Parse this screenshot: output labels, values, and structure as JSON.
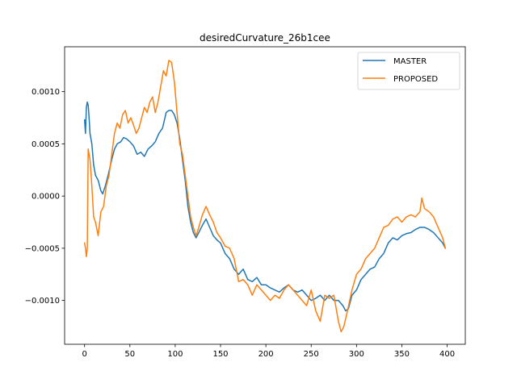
{
  "chart_data": {
    "type": "line",
    "title": "desiredCurvature_26b1cee",
    "xlabel": "",
    "ylabel": "",
    "xlim": [
      -22,
      420
    ],
    "ylim": [
      -0.00142,
      0.00143
    ],
    "x_ticks": [
      0,
      50,
      100,
      150,
      200,
      250,
      300,
      350,
      400
    ],
    "y_ticks": [
      -0.001,
      -0.0005,
      0.0,
      0.0005,
      0.001
    ],
    "y_tick_labels": [
      "−0.0010",
      "−0.0005",
      "0.0000",
      "0.0005",
      "0.0010"
    ],
    "grid": false,
    "legend": "top-right",
    "series": [
      {
        "name": "MASTER",
        "color": "#1f77b4",
        "x": [
          0,
          1,
          2,
          3,
          4,
          5,
          6,
          8,
          10,
          12,
          15,
          18,
          20,
          23,
          26,
          30,
          33,
          36,
          40,
          43,
          46,
          50,
          54,
          58,
          62,
          66,
          70,
          74,
          78,
          82,
          86,
          90,
          93,
          96,
          99,
          102,
          105,
          108,
          111,
          114,
          117,
          120,
          123,
          126,
          130,
          134,
          138,
          142,
          146,
          150,
          155,
          160,
          165,
          170,
          175,
          180,
          185,
          190,
          195,
          200,
          205,
          210,
          215,
          220,
          225,
          230,
          235,
          240,
          245,
          250,
          255,
          260,
          265,
          270,
          275,
          280,
          285,
          288,
          291,
          295,
          300,
          305,
          310,
          315,
          320,
          325,
          330,
          335,
          340,
          345,
          350,
          355,
          360,
          365,
          370,
          375,
          380,
          385,
          390,
          395,
          398
        ],
        "y": [
          0.00073,
          0.0006,
          0.00085,
          0.0009,
          0.00087,
          0.00075,
          0.0006,
          0.0005,
          0.0003,
          0.0002,
          0.00015,
          5e-05,
          2e-05,
          0.0001,
          0.0002,
          0.00035,
          0.00045,
          0.0005,
          0.00052,
          0.00056,
          0.00055,
          0.00052,
          0.00048,
          0.0004,
          0.00042,
          0.00038,
          0.00045,
          0.00048,
          0.00052,
          0.0006,
          0.00065,
          0.0008,
          0.00082,
          0.00082,
          0.00078,
          0.0007,
          0.00055,
          0.00035,
          0.00015,
          -0.0001,
          -0.00025,
          -0.00035,
          -0.0004,
          -0.00035,
          -0.00028,
          -0.00022,
          -0.0003,
          -0.00038,
          -0.00042,
          -0.00045,
          -0.00055,
          -0.0006,
          -0.0007,
          -0.00075,
          -0.0007,
          -0.0008,
          -0.00082,
          -0.00078,
          -0.00085,
          -0.00085,
          -0.00088,
          -0.0009,
          -0.00092,
          -0.00088,
          -0.00085,
          -0.0009,
          -0.00092,
          -0.0009,
          -0.00095,
          -0.001,
          -0.00098,
          -0.00095,
          -0.001,
          -0.00095,
          -0.001,
          -0.001,
          -0.00105,
          -0.0011,
          -0.00108,
          -0.00095,
          -0.0009,
          -0.0008,
          -0.00075,
          -0.0007,
          -0.00068,
          -0.0006,
          -0.00055,
          -0.00045,
          -0.0004,
          -0.00042,
          -0.00038,
          -0.00036,
          -0.00035,
          -0.00032,
          -0.0003,
          -0.0003,
          -0.00032,
          -0.00035,
          -0.0004,
          -0.00045,
          -0.0005
        ]
      },
      {
        "name": "PROPOSED",
        "color": "#ff7f0e",
        "x": [
          0,
          1,
          2,
          3,
          4,
          5,
          6,
          8,
          10,
          12,
          15,
          18,
          21,
          24,
          27,
          30,
          33,
          36,
          39,
          42,
          45,
          48,
          51,
          54,
          57,
          60,
          63,
          66,
          69,
          72,
          75,
          78,
          81,
          84,
          87,
          90,
          93,
          96,
          99,
          101,
          103,
          105,
          108,
          111,
          114,
          117,
          120,
          123,
          126,
          130,
          134,
          138,
          142,
          146,
          150,
          155,
          160,
          165,
          170,
          175,
          180,
          185,
          190,
          195,
          200,
          205,
          210,
          215,
          220,
          225,
          230,
          235,
          240,
          245,
          250,
          255,
          260,
          265,
          270,
          275,
          280,
          283,
          286,
          290,
          295,
          300,
          305,
          310,
          315,
          320,
          325,
          330,
          335,
          340,
          345,
          350,
          355,
          360,
          365,
          370,
          372,
          375,
          380,
          385,
          390,
          395,
          398
        ],
        "y": [
          -0.00045,
          -0.0005,
          -0.00058,
          -0.0005,
          0.00045,
          0.0004,
          0.00035,
          0.0001,
          -0.0002,
          -0.00025,
          -0.00038,
          -0.00015,
          -0.0001,
          0.0001,
          0.0002,
          0.0004,
          0.0006,
          0.0007,
          0.00065,
          0.00078,
          0.00082,
          0.0007,
          0.00075,
          0.00068,
          0.0006,
          0.00065,
          0.00075,
          0.00085,
          0.0008,
          0.0009,
          0.00095,
          0.0008,
          0.0009,
          0.00105,
          0.0012,
          0.00115,
          0.0013,
          0.00128,
          0.0011,
          0.0009,
          0.0007,
          0.0005,
          0.0004,
          0.0002,
          0.0,
          -0.0002,
          -0.0003,
          -0.00038,
          -0.0003,
          -0.00018,
          -0.0001,
          -0.00018,
          -0.00025,
          -0.00035,
          -0.0004,
          -0.00048,
          -0.0005,
          -0.0006,
          -0.00082,
          -0.0008,
          -0.00085,
          -0.00095,
          -0.00085,
          -0.0009,
          -0.00095,
          -0.001,
          -0.00095,
          -0.00098,
          -0.0009,
          -0.00085,
          -0.0009,
          -0.00095,
          -0.001,
          -0.00105,
          -0.0009,
          -0.0011,
          -0.0012,
          -0.00095,
          -0.00098,
          -0.00095,
          -0.0012,
          -0.0013,
          -0.00125,
          -0.0011,
          -0.0009,
          -0.00075,
          -0.0007,
          -0.0006,
          -0.00055,
          -0.0005,
          -0.0004,
          -0.0003,
          -0.00028,
          -0.00022,
          -0.0002,
          -0.00025,
          -0.0002,
          -0.00018,
          -0.0002,
          -0.00015,
          -2e-05,
          -0.00012,
          -0.00015,
          -0.0002,
          -0.0003,
          -0.0004,
          -0.0005
        ]
      }
    ]
  }
}
